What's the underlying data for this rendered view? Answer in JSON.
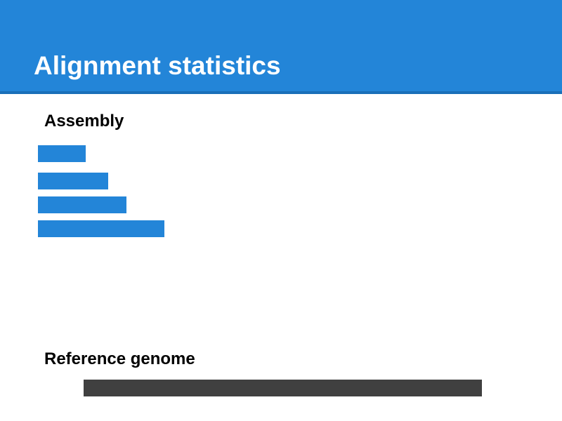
{
  "slide": {
    "title": "Alignment statistics"
  },
  "assembly": {
    "label": "Assembly",
    "contigs": [
      {
        "relative_length": 0.12
      },
      {
        "relative_length": 0.176
      },
      {
        "relative_length": 0.222
      },
      {
        "relative_length": 0.317
      }
    ]
  },
  "reference": {
    "label": "Reference genome",
    "relative_length": 1.0
  },
  "colors": {
    "header": "#2385d8",
    "header_rule": "#1a6fb8",
    "contig": "#2385d8",
    "reference": "#404040"
  }
}
